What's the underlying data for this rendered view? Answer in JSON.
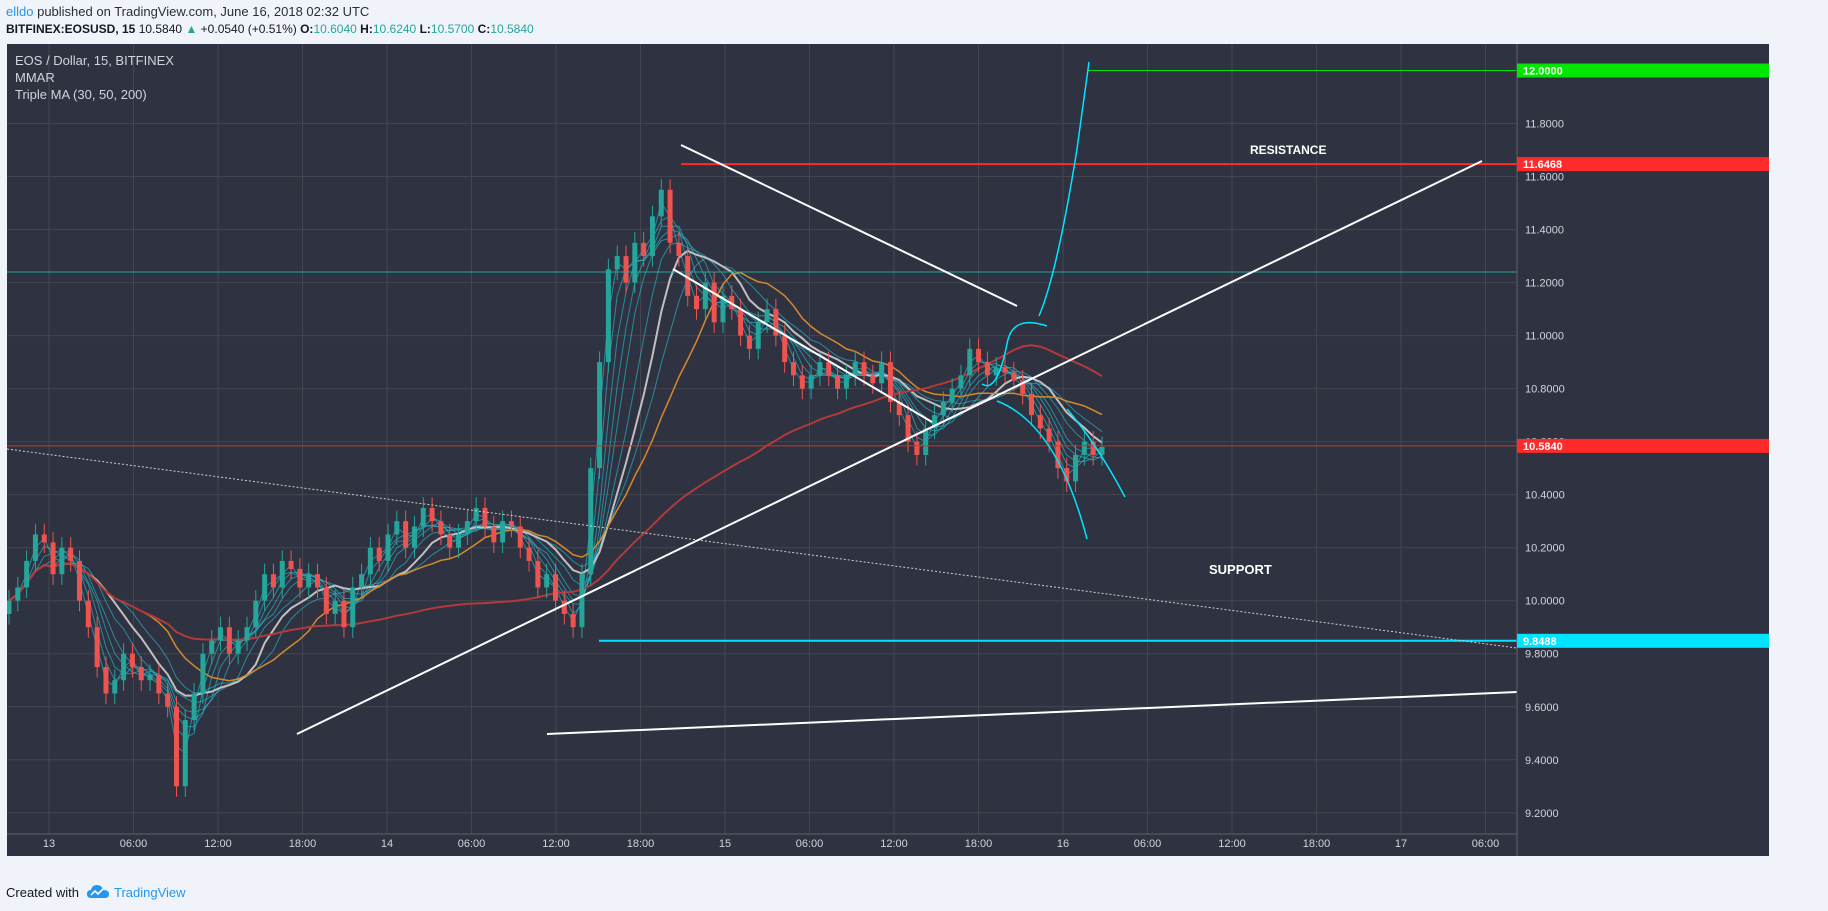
{
  "header": {
    "author": "elldo",
    "published": "published on TradingView.com, June 16, 2018 02:32 UTC",
    "symbol": "BITFINEX:EOSUSD, 15",
    "last": "10.5840",
    "change": "+0.0540 (+0.51%)",
    "o_label": "O:",
    "o": "10.6040",
    "h_label": "H:",
    "h": "10.6240",
    "l_label": "L:",
    "l": "10.5700",
    "c_label": "C:",
    "c": "10.5840"
  },
  "legend": {
    "title": "EOS / Dollar, 15, BITFINEX",
    "ind1": "MMAR",
    "ind2": "Triple MA (30, 50, 200)"
  },
  "annotations": {
    "resistance": "RESISTANCE",
    "support": "SUPPORT"
  },
  "footer": {
    "created": "Created with",
    "brand": "TradingView"
  },
  "colors": {
    "bg": "#2f3241",
    "bull": "#26a69a",
    "bear": "#ef5350",
    "support": "#00e5ff",
    "resistance": "#ff2b2b",
    "target": "#00e600"
  },
  "chart_data": {
    "type": "candlestick",
    "ylim": [
      9.12,
      12.1
    ],
    "y_ticks": [
      "9.2000",
      "9.4000",
      "9.6000",
      "9.8000",
      "10.0000",
      "10.2000",
      "10.4000",
      "10.6000",
      "10.8000",
      "11.0000",
      "11.2000",
      "11.4000",
      "11.6000",
      "11.8000"
    ],
    "x_ticks": [
      "13",
      "06:00",
      "12:00",
      "18:00",
      "14",
      "06:00",
      "12:00",
      "18:00",
      "15",
      "06:00",
      "12:00",
      "18:00",
      "16",
      "06:00",
      "12:00",
      "18:00",
      "17",
      "06:00"
    ],
    "price_labels": [
      {
        "value": "12.0000",
        "color": "#00e600"
      },
      {
        "value": "11.6468",
        "color": "#ff2b2b"
      },
      {
        "value": "10.5840",
        "color": "#ff2b2b"
      },
      {
        "value": "9.8488",
        "color": "#00e5ff"
      }
    ],
    "levels": {
      "resistance": 11.6468,
      "support": 9.8488,
      "target": 12.0,
      "last": 10.584,
      "h_line": 11.24
    },
    "closes": [
      10.0,
      10.05,
      10.15,
      10.25,
      10.22,
      10.1,
      10.2,
      10.15,
      10.0,
      9.9,
      9.75,
      9.65,
      9.7,
      9.8,
      9.75,
      9.7,
      9.72,
      9.65,
      9.6,
      9.3,
      9.55,
      9.65,
      9.8,
      9.85,
      9.9,
      9.8,
      9.85,
      9.9,
      10.0,
      10.1,
      10.05,
      10.15,
      10.12,
      10.05,
      10.1,
      10.05,
      9.95,
      10.0,
      9.9,
      10.05,
      10.1,
      10.2,
      10.15,
      10.25,
      10.3,
      10.2,
      10.28,
      10.35,
      10.3,
      10.25,
      10.2,
      10.25,
      10.3,
      10.35,
      10.28,
      10.22,
      10.3,
      10.28,
      10.2,
      10.15,
      10.05,
      10.1,
      10.0,
      9.95,
      9.9,
      10.1,
      10.5,
      10.9,
      11.25,
      11.3,
      11.2,
      11.35,
      11.3,
      11.45,
      11.55,
      11.35,
      11.3,
      11.15,
      11.1,
      11.2,
      11.05,
      11.15,
      11.1,
      11.0,
      10.95,
      11.05,
      11.1,
      11.0,
      10.9,
      10.85,
      10.8,
      10.85,
      10.9,
      10.85,
      10.8,
      10.85,
      10.9,
      10.85,
      10.82,
      10.9,
      10.75,
      10.7,
      10.6,
      10.55,
      10.65,
      10.7,
      10.75,
      10.8,
      10.85,
      10.95,
      10.9,
      10.85,
      10.88,
      10.86,
      10.83,
      10.78,
      10.7,
      10.65,
      10.6,
      10.5,
      10.45,
      10.55,
      10.6,
      10.55,
      10.58
    ]
  }
}
